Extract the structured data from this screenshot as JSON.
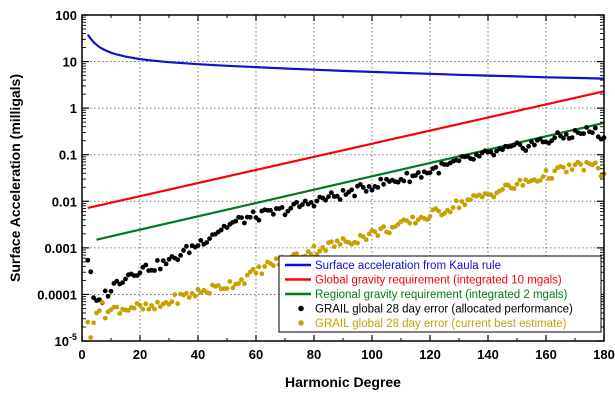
{
  "chart_data": {
    "type": "line",
    "xlabel": "Harmonic Degree",
    "ylabel": "Surface Acceleration (milligals)",
    "xlim": [
      0,
      180
    ],
    "ylim": [
      1e-05,
      100
    ],
    "y_scale": "log",
    "grid": true,
    "legend_position": "bottom-right",
    "x_ticks": [
      "0",
      "20",
      "40",
      "60",
      "80",
      "100",
      "120",
      "140",
      "160",
      "180"
    ],
    "y_ticks": [
      "10-5",
      "0.0001",
      "0.001",
      "0.01",
      "0.1",
      "1",
      "10",
      "100"
    ],
    "series": [
      {
        "name": "Surface acceleration from Kaula rule",
        "style": "line",
        "color": "#1010d0",
        "x": [
          2,
          3,
          4,
          5,
          6,
          8,
          10,
          12,
          15,
          20,
          25,
          30,
          40,
          50,
          60,
          70,
          80,
          90,
          100,
          110,
          120,
          130,
          140,
          150,
          160,
          170,
          180
        ],
        "values": [
          38,
          31,
          26,
          23,
          20.5,
          17.5,
          15.5,
          14.2,
          12.8,
          11.3,
          10.4,
          9.7,
          8.8,
          8.1,
          7.6,
          7.1,
          6.7,
          6.3,
          6.0,
          5.7,
          5.45,
          5.2,
          5.0,
          4.8,
          4.6,
          4.45,
          4.3
        ]
      },
      {
        "name": "Global gravity requirement (integrated 10 mgals)",
        "style": "line",
        "color": "#ff0000",
        "x": [
          2,
          180
        ],
        "values": [
          0.0072,
          2.3
        ]
      },
      {
        "name": "Regional gravity requirement (integrated 2 mgals)",
        "style": "line",
        "color": "#007a1e",
        "x": [
          5,
          180
        ],
        "values": [
          0.0015,
          0.48
        ]
      },
      {
        "name": "GRAIL global 28 day error (allocated performance)",
        "style": "points",
        "color": "#000000",
        "x": [
          2,
          3,
          4,
          5,
          6,
          7,
          8,
          10,
          12,
          15,
          18,
          20,
          25,
          30,
          35,
          40,
          45,
          50,
          55,
          60,
          65,
          70,
          75,
          80,
          85,
          90,
          95,
          100,
          105,
          110,
          115,
          120,
          125,
          130,
          135,
          140,
          145,
          150,
          155,
          160,
          165,
          170,
          175,
          178,
          180
        ],
        "values": [
          0.0006,
          0.00025,
          8e-05,
          6e-05,
          7e-05,
          8e-05,
          0.0001,
          0.00013,
          0.00018,
          0.00025,
          0.0003,
          0.00035,
          0.0004,
          0.0005,
          0.0008,
          0.0012,
          0.002,
          0.003,
          0.004,
          0.0048,
          0.0055,
          0.0065,
          0.008,
          0.01,
          0.012,
          0.014,
          0.017,
          0.022,
          0.026,
          0.03,
          0.036,
          0.045,
          0.055,
          0.07,
          0.085,
          0.1,
          0.12,
          0.14,
          0.17,
          0.2,
          0.24,
          0.28,
          0.33,
          0.3,
          0.2
        ]
      },
      {
        "name": "GRAIL global 28 day error (current best estimate)",
        "style": "points",
        "color": "#c8a000",
        "x": [
          2,
          3,
          4,
          5,
          6,
          7,
          8,
          10,
          12,
          15,
          18,
          20,
          25,
          30,
          35,
          40,
          45,
          50,
          55,
          60,
          65,
          70,
          75,
          80,
          85,
          90,
          95,
          100,
          105,
          110,
          115,
          120,
          125,
          130,
          135,
          140,
          145,
          150,
          155,
          160,
          165,
          170,
          175,
          178,
          180
        ],
        "values": [
          2.5e-05,
          1.5e-05,
          3e-05,
          4.5e-05,
          3.5e-05,
          7e-05,
          4e-05,
          4.5e-05,
          5e-05,
          5e-05,
          5.5e-05,
          5e-05,
          5e-05,
          7e-05,
          9e-05,
          0.00011,
          0.00013,
          0.00016,
          0.0002,
          0.0003,
          0.00045,
          0.00055,
          0.0007,
          0.0009,
          0.0011,
          0.0013,
          0.0016,
          0.002,
          0.0025,
          0.003,
          0.004,
          0.005,
          0.0065,
          0.009,
          0.011,
          0.014,
          0.018,
          0.022,
          0.028,
          0.036,
          0.045,
          0.055,
          0.06,
          0.05,
          0.035
        ]
      }
    ]
  }
}
